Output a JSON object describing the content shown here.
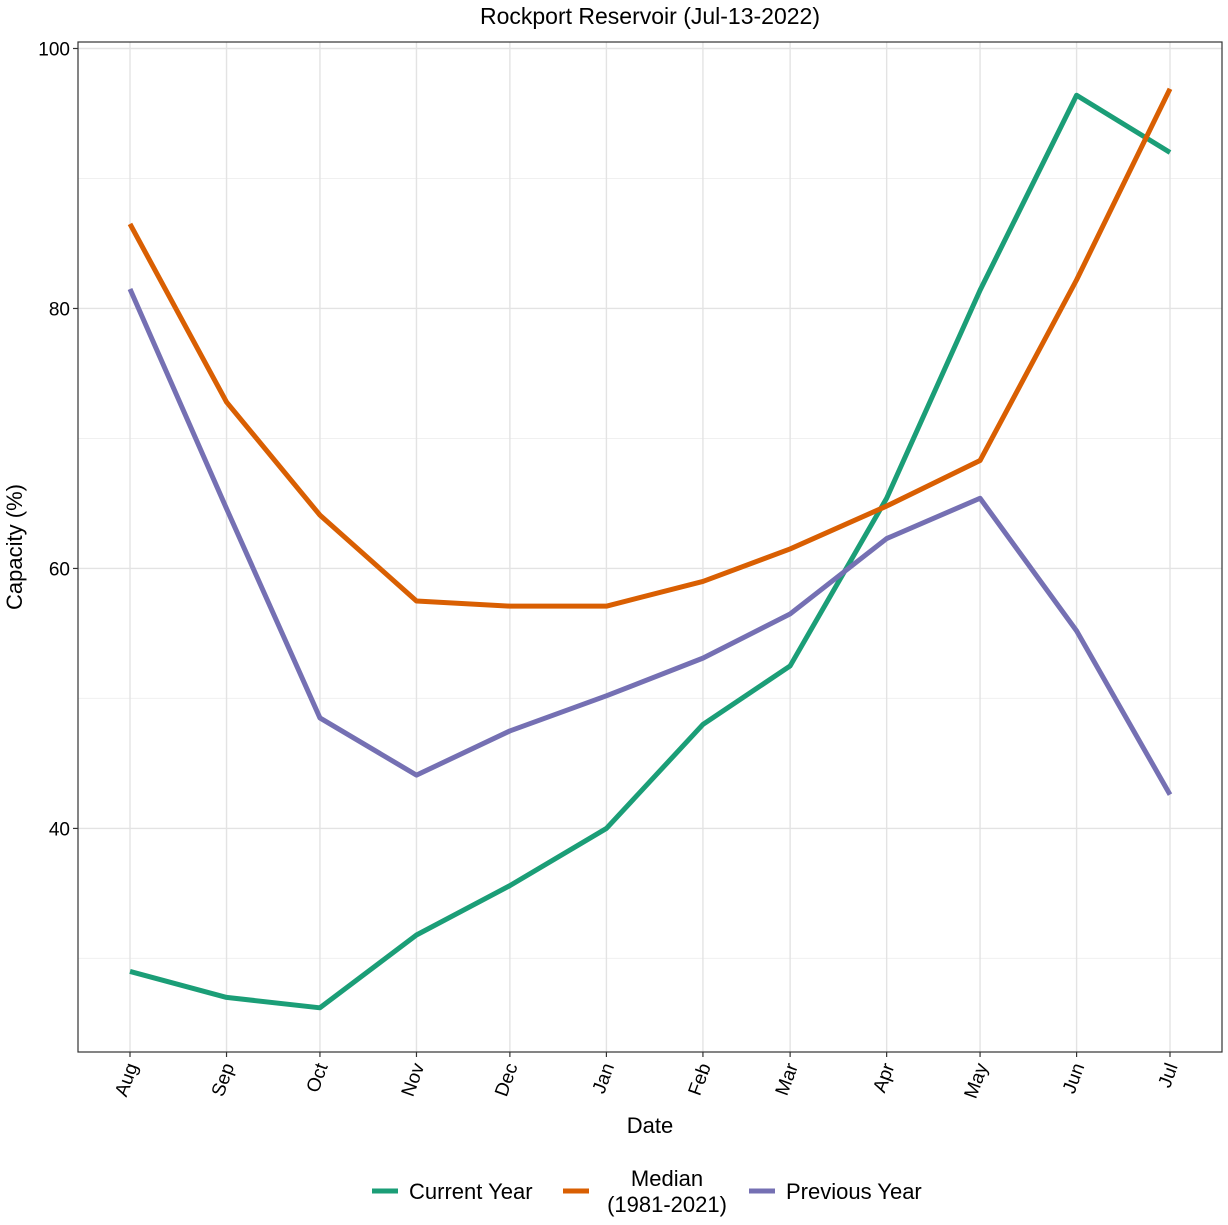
{
  "chart_data": {
    "type": "line",
    "title": "Rockport Reservoir (Jul-13-2022)",
    "xlabel": "Date",
    "ylabel": "Capacity (%)",
    "x": [
      "2021-08-01",
      "2021-09-01",
      "2021-10-01",
      "2021-11-01",
      "2021-12-01",
      "2022-01-01",
      "2022-02-01",
      "2022-03-01",
      "2022-04-01",
      "2022-05-01",
      "2022-06-01",
      "2022-07-01"
    ],
    "x_tick_labels": [
      "Aug",
      "Sep",
      "Oct",
      "Nov",
      "Dec",
      "Jan",
      "Feb",
      "Mar",
      "Apr",
      "May",
      "Jun",
      "Jul"
    ],
    "y_ticks": [
      40,
      60,
      80,
      100
    ],
    "ylim": [
      22.8,
      100.5
    ],
    "grid": true,
    "legend_position": "bottom",
    "series": [
      {
        "name": "Current Year",
        "color": "#1B9E77",
        "values": [
          29.0,
          27.0,
          26.2,
          31.8,
          35.6,
          40.0,
          48.0,
          52.5,
          65.4,
          81.4,
          96.4,
          92.0
        ]
      },
      {
        "name": "Median\n(1981-2021)",
        "color": "#D95F02",
        "values": [
          86.5,
          72.8,
          64.1,
          57.5,
          57.1,
          57.1,
          59.0,
          61.5,
          64.8,
          68.3,
          82.2,
          96.9
        ]
      },
      {
        "name": "Previous Year",
        "color": "#7570B3",
        "values": [
          81.5,
          64.6,
          48.5,
          44.1,
          47.5,
          50.2,
          53.1,
          56.5,
          62.3,
          65.4,
          55.2,
          42.6
        ]
      }
    ]
  }
}
